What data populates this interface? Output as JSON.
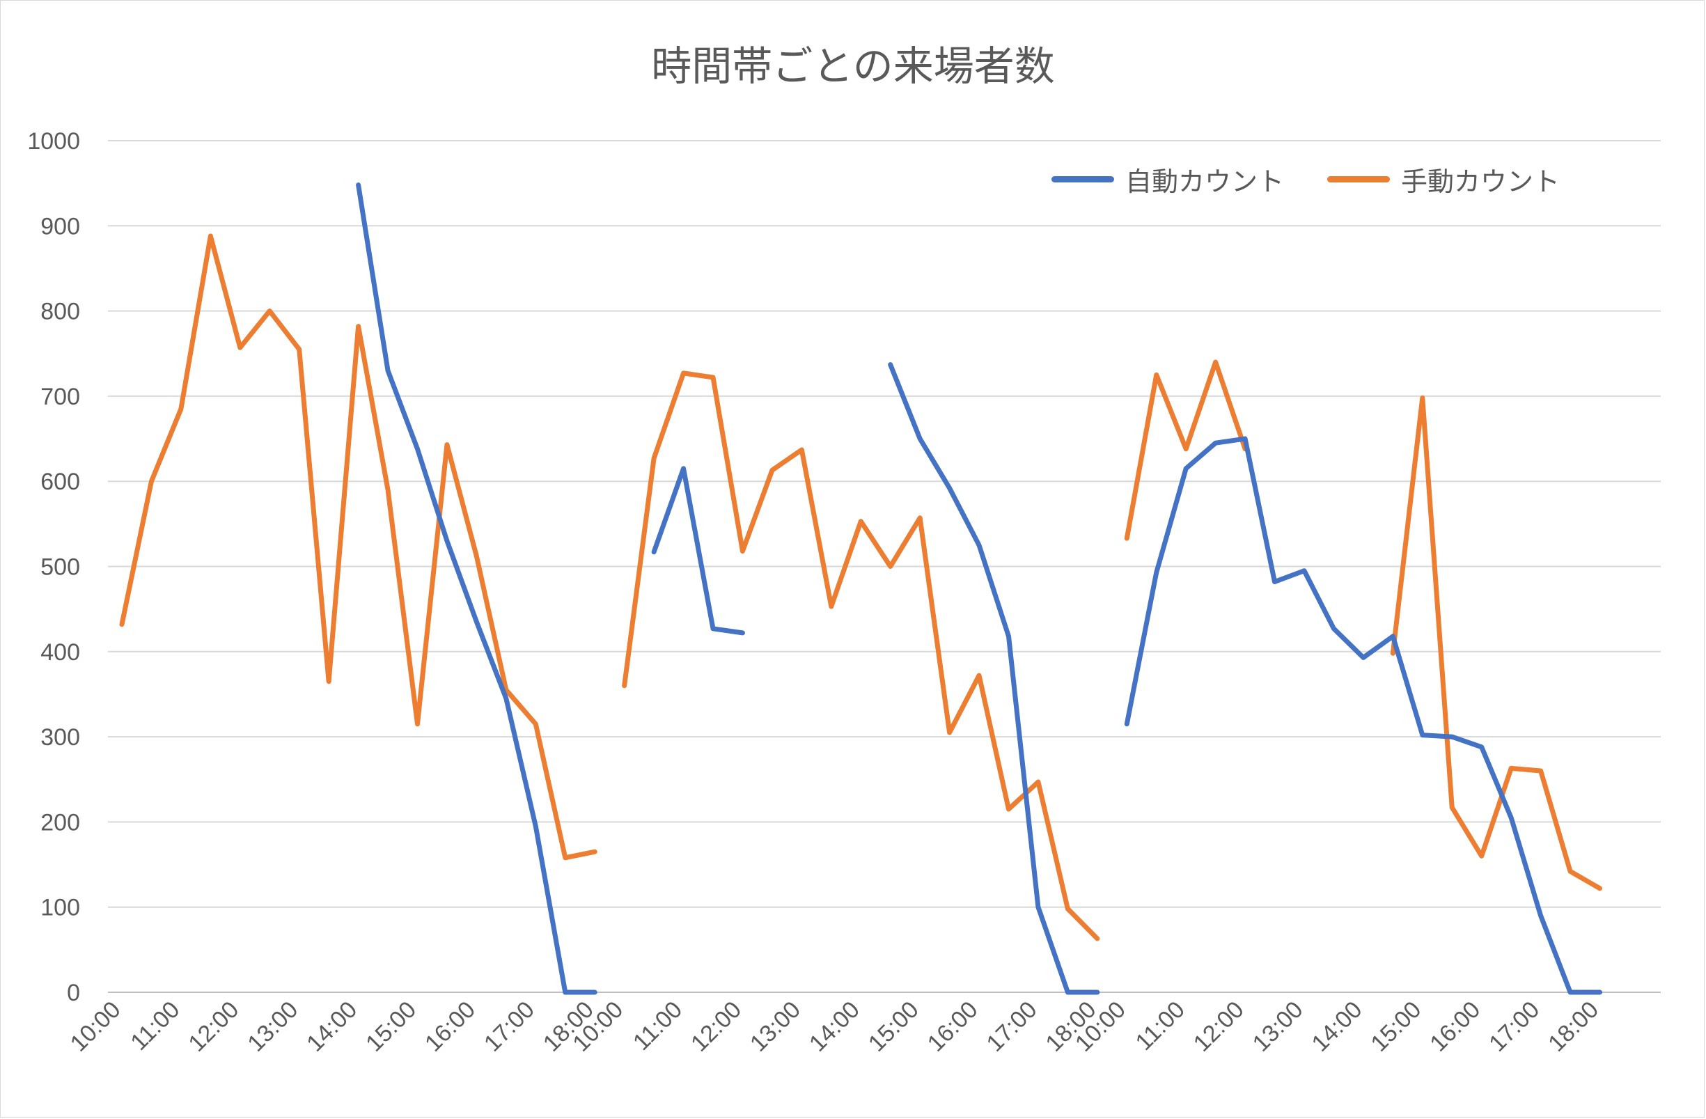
{
  "chart_data": {
    "type": "line",
    "title": "時間帯ごとの来場者数",
    "xlabel": "",
    "ylabel": "",
    "ylim": [
      0,
      1000
    ],
    "yticks": [
      "0",
      "100",
      "200",
      "300",
      "400",
      "500",
      "600",
      "700",
      "800",
      "900",
      "1000"
    ],
    "x": [
      "10:00",
      "",
      "11:00",
      "",
      "12:00",
      "",
      "13:00",
      "",
      "14:00",
      "",
      "15:00",
      "",
      "16:00",
      "",
      "17:00",
      "",
      "18:00",
      "10:00",
      "",
      "11:00",
      "",
      "12:00",
      "",
      "13:00",
      "",
      "14:00",
      "",
      "15:00",
      "",
      "16:00",
      "",
      "17:00",
      "",
      "18:00",
      "10:00",
      "",
      "11:00",
      "",
      "12:00",
      "",
      "13:00",
      "",
      "14:00",
      "",
      "15:00",
      "",
      "16:00",
      "",
      "17:00",
      "",
      "18:00"
    ],
    "series": [
      {
        "name": "自動カウント",
        "color": "#4472c4",
        "values": [
          null,
          null,
          null,
          null,
          null,
          null,
          null,
          null,
          948,
          730,
          638,
          530,
          435,
          345,
          195,
          0,
          0,
          null,
          517,
          615,
          427,
          422,
          null,
          null,
          null,
          null,
          737,
          650,
          592,
          525,
          418,
          100,
          0,
          0,
          315,
          493,
          615,
          645,
          650,
          482,
          495,
          427,
          393,
          418,
          302,
          300,
          288,
          205,
          90,
          0,
          0
        ]
      },
      {
        "name": "手動カウント",
        "color": "#ed7d31",
        "values": [
          432,
          600,
          685,
          888,
          757,
          800,
          755,
          365,
          782,
          590,
          315,
          643,
          512,
          355,
          315,
          158,
          165,
          360,
          627,
          727,
          722,
          518,
          613,
          637,
          453,
          553,
          500,
          557,
          305,
          372,
          215,
          247,
          98,
          63,
          533,
          725,
          638,
          740,
          638,
          null,
          null,
          null,
          null,
          398,
          698,
          217,
          160,
          263,
          260,
          142,
          122
        ]
      }
    ],
    "gaps": [
      {
        "series": 0,
        "break_after": [
          3,
          21,
          33
        ]
      },
      {
        "series": 1,
        "break_after": [
          16,
          33,
          38
        ]
      }
    ],
    "legend_position": "top-right",
    "grid": true
  }
}
